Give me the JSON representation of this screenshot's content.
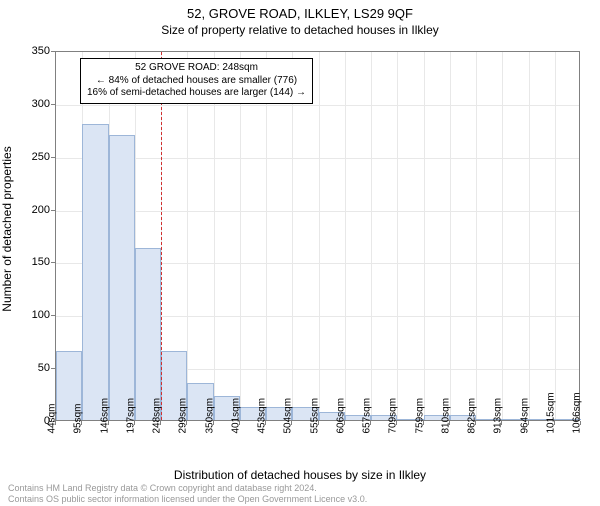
{
  "title": "52, GROVE ROAD, ILKLEY, LS29 9QF",
  "subtitle": "Size of property relative to detached houses in Ilkley",
  "xlabel": "Distribution of detached houses by size in Ilkley",
  "ylabel": "Number of detached properties",
  "chart": {
    "type": "histogram",
    "background_color": "#ffffff",
    "border_color": "#808080",
    "grid_color": "#e8e8e8",
    "bar_fill": "#dbe5f4",
    "bar_stroke": "#9db6d8",
    "marker_color": "#d03030",
    "ylim": [
      0,
      350
    ],
    "ytick_step": 50,
    "yticks": [
      0,
      50,
      100,
      150,
      200,
      250,
      300,
      350
    ],
    "xticks": [
      "44sqm",
      "95sqm",
      "146sqm",
      "197sqm",
      "248sqm",
      "299sqm",
      "350sqm",
      "401sqm",
      "453sqm",
      "504sqm",
      "555sqm",
      "606sqm",
      "657sqm",
      "709sqm",
      "759sqm",
      "810sqm",
      "862sqm",
      "913sqm",
      "964sqm",
      "1015sqm",
      "1066sqm"
    ],
    "values": [
      65,
      280,
      270,
      163,
      65,
      35,
      23,
      12,
      12,
      12,
      8,
      5,
      5,
      0,
      5,
      5,
      0,
      0,
      0,
      0
    ],
    "marker_index": 4,
    "label_fontsize": 11,
    "tick_fontsize": 10
  },
  "annotation": {
    "line1": "52 GROVE ROAD: 248sqm",
    "line2": "← 84% of detached houses are smaller (776)",
    "line3": "16% of semi-detached houses are larger (144) →"
  },
  "copyright": {
    "line1": "Contains HM Land Registry data © Crown copyright and database right 2024.",
    "line2": "Contains OS public sector information licensed under the Open Government Licence v3.0."
  }
}
